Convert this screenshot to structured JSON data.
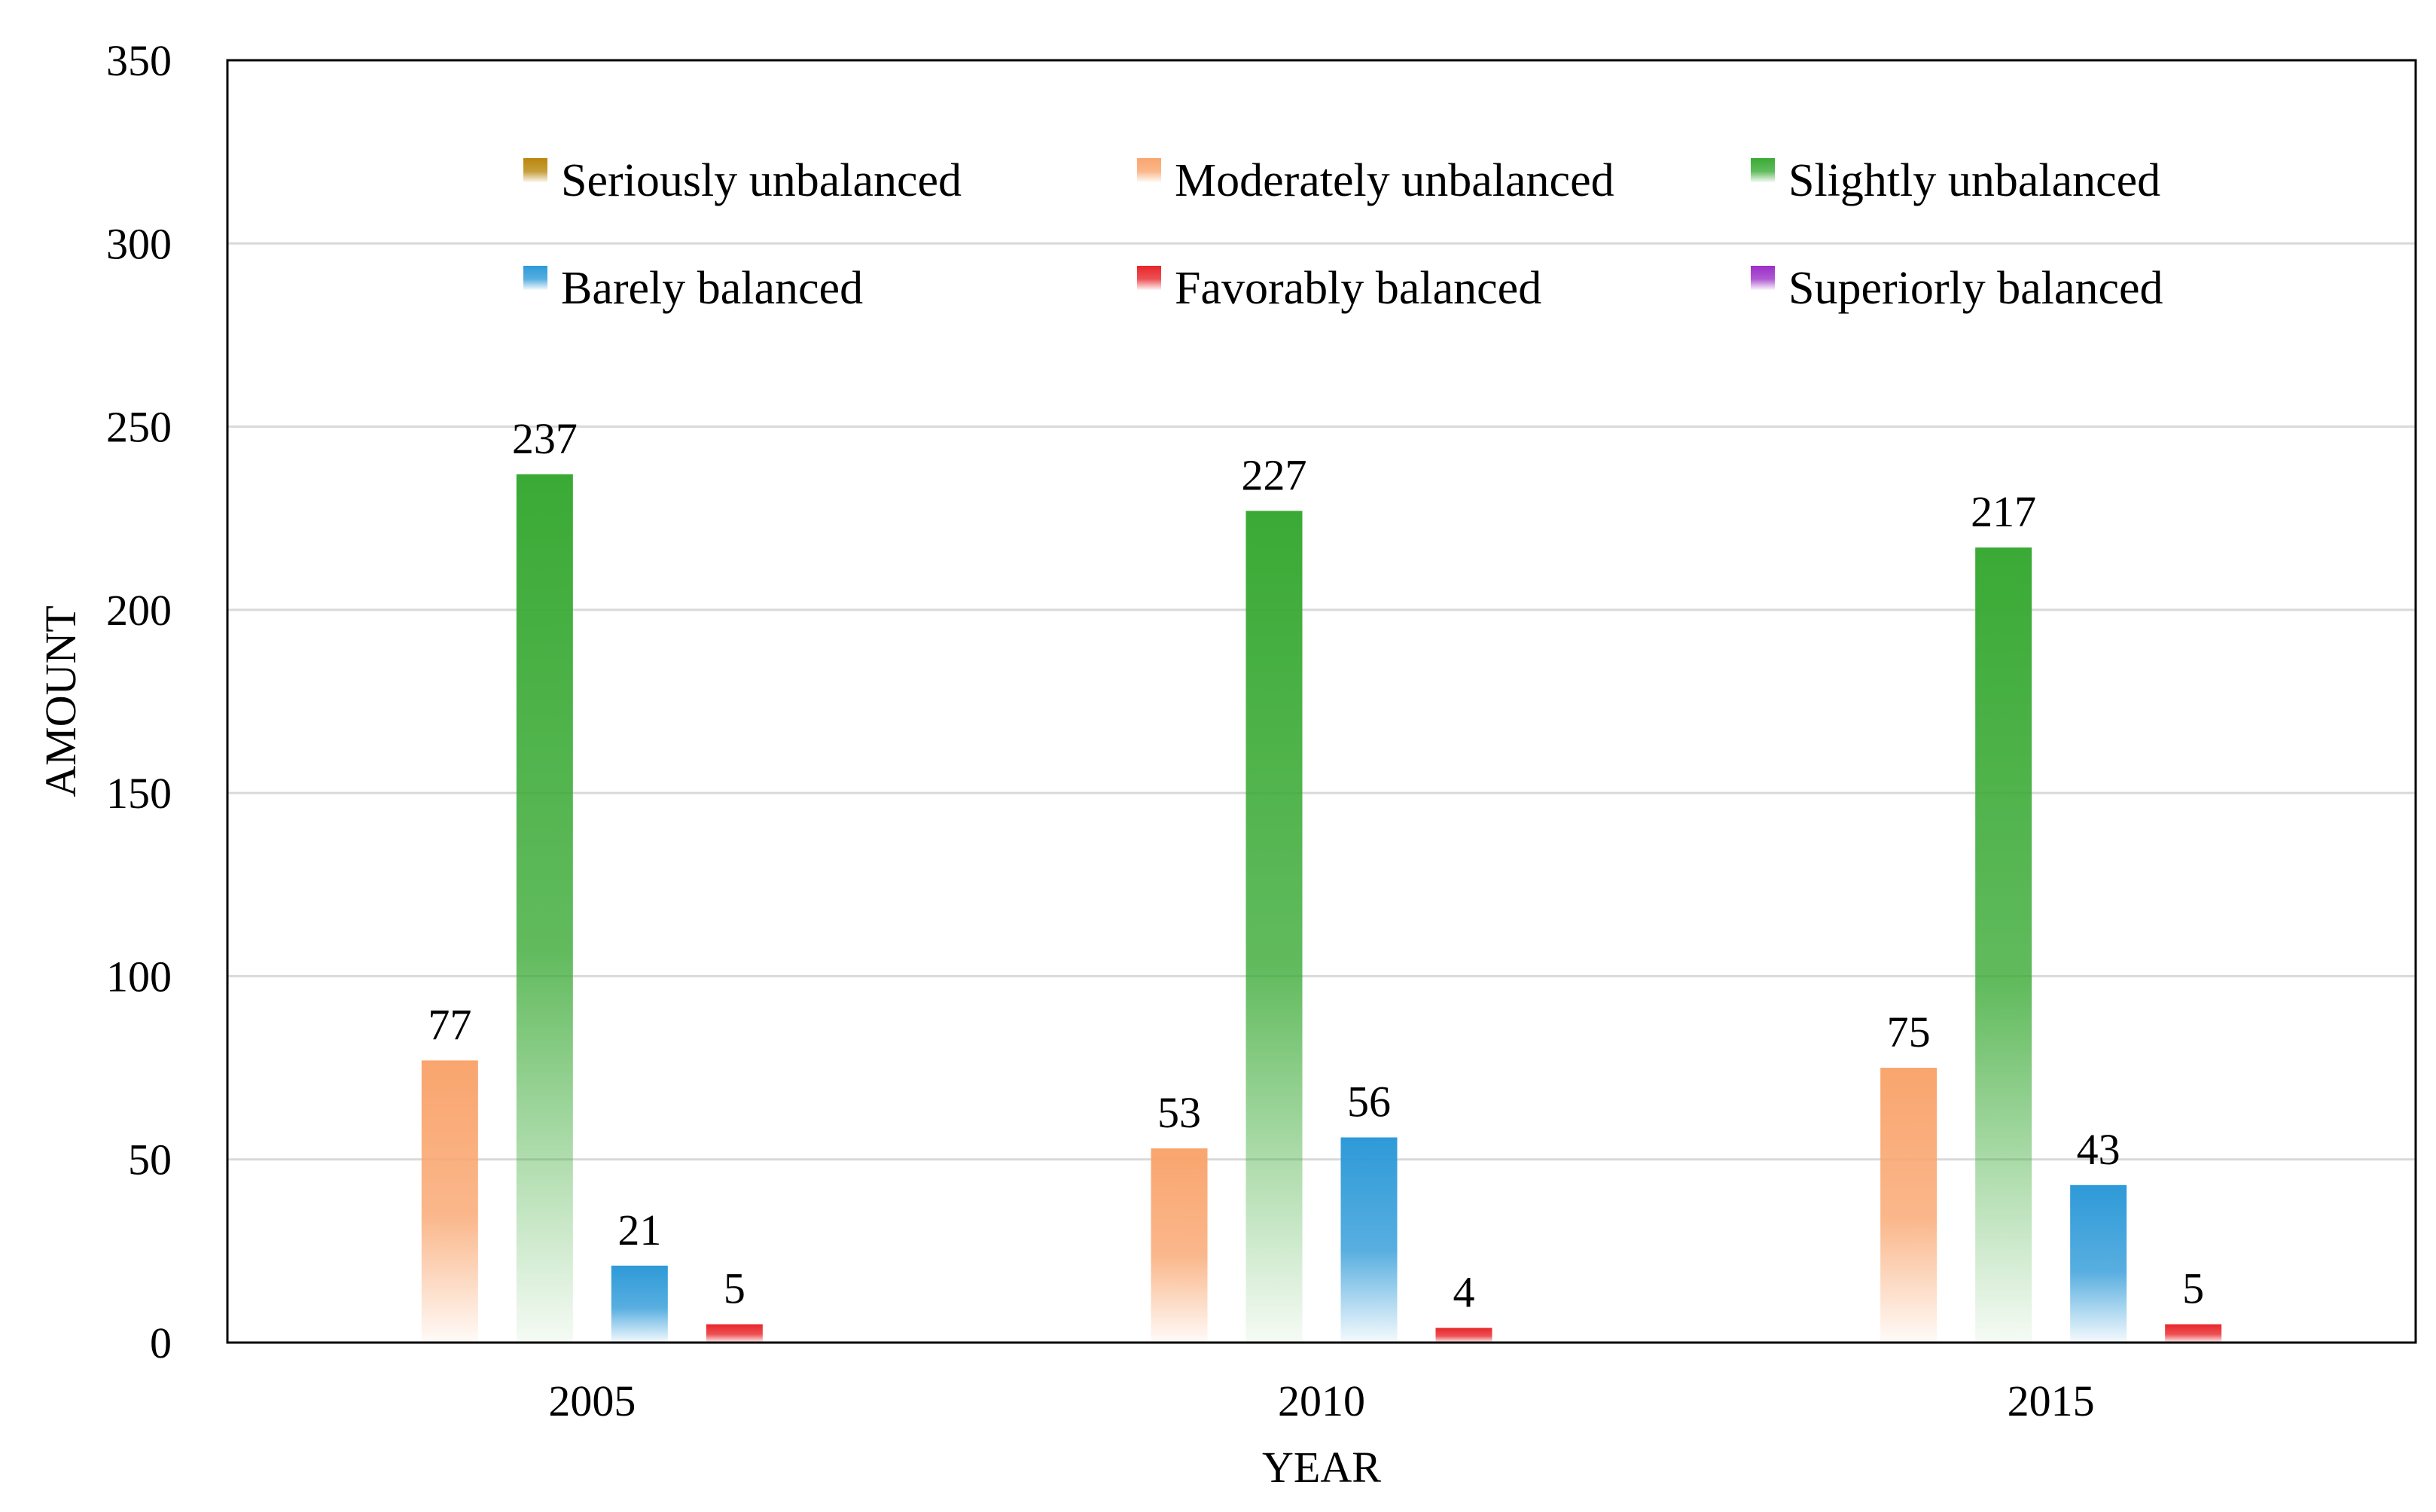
{
  "chart_data": {
    "type": "bar",
    "title": "",
    "xlabel": "YEAR",
    "ylabel": "AMOUNT",
    "ylim": [
      0,
      350
    ],
    "yticks": [
      0,
      50,
      100,
      150,
      200,
      250,
      300,
      350
    ],
    "grid": true,
    "legend_position": "top",
    "categories": [
      "2005",
      "2010",
      "2015"
    ],
    "series": [
      {
        "name": "Seriously unbalanced",
        "color": "#B8860B",
        "values": [
          0,
          0,
          0
        ],
        "show_bar": false
      },
      {
        "name": "Moderately unbalanced",
        "color": "#F9A56E",
        "values": [
          77,
          53,
          75
        ],
        "show_bar": true
      },
      {
        "name": "Slightly unbalanced",
        "color": "#3AAA35",
        "values": [
          237,
          227,
          217
        ],
        "show_bar": true
      },
      {
        "name": "Barely balanced",
        "color": "#2E9AD8",
        "values": [
          21,
          56,
          43
        ],
        "show_bar": true
      },
      {
        "name": "Favorably balanced",
        "color": "#E8262A",
        "values": [
          5,
          4,
          5
        ],
        "show_bar": true
      },
      {
        "name": "Superiorly balanced",
        "color": "#9B30C8",
        "values": [
          0,
          0,
          0
        ],
        "show_bar": false
      }
    ]
  }
}
